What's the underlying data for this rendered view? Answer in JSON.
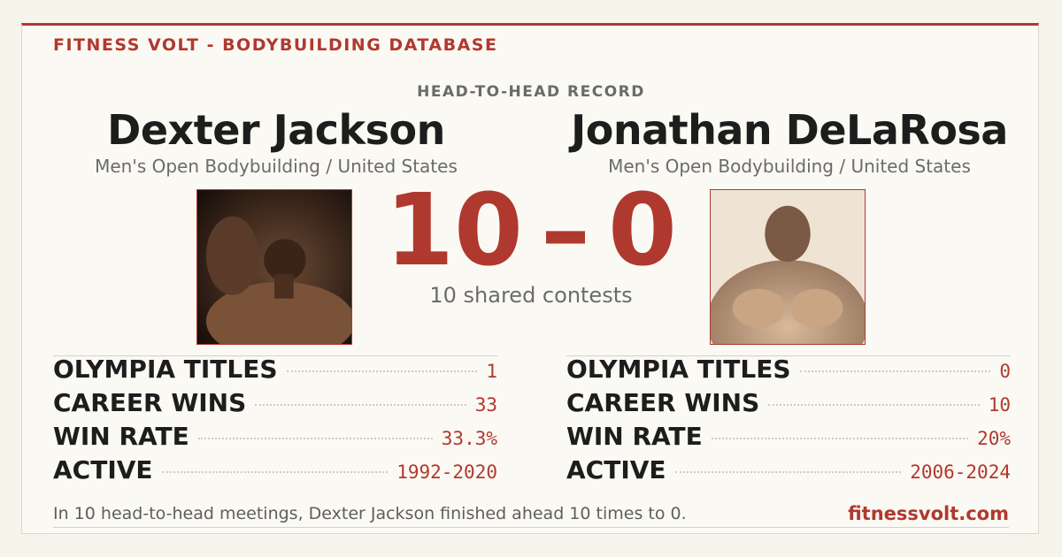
{
  "header": {
    "brand": "FITNESS VOLT - BODYBUILDING DATABASE",
    "subtitle": "HEAD-TO-HEAD RECORD"
  },
  "players": [
    {
      "name": "Dexter Jackson",
      "division": "Men's Open Bodybuilding / United States",
      "stats": [
        {
          "label": "OLYMPIA TITLES",
          "value": "1"
        },
        {
          "label": "CAREER WINS",
          "value": "33"
        },
        {
          "label": "WIN RATE",
          "value": "33.3%"
        },
        {
          "label": "ACTIVE",
          "value": "1992-2020"
        }
      ]
    },
    {
      "name": "Jonathan DeLaRosa",
      "division": "Men's Open Bodybuilding / United States",
      "stats": [
        {
          "label": "OLYMPIA TITLES",
          "value": "0"
        },
        {
          "label": "CAREER WINS",
          "value": "10"
        },
        {
          "label": "WIN RATE",
          "value": "20%"
        },
        {
          "label": "ACTIVE",
          "value": "2006-2024"
        }
      ]
    }
  ],
  "score": {
    "left": 10,
    "separator": "–",
    "right": 0,
    "caption": "10 shared contests"
  },
  "footer": {
    "summary": "In 10 head-to-head meetings, Dexter Jackson finished ahead 10 times to 0.",
    "site": "fitnessvolt.com"
  }
}
